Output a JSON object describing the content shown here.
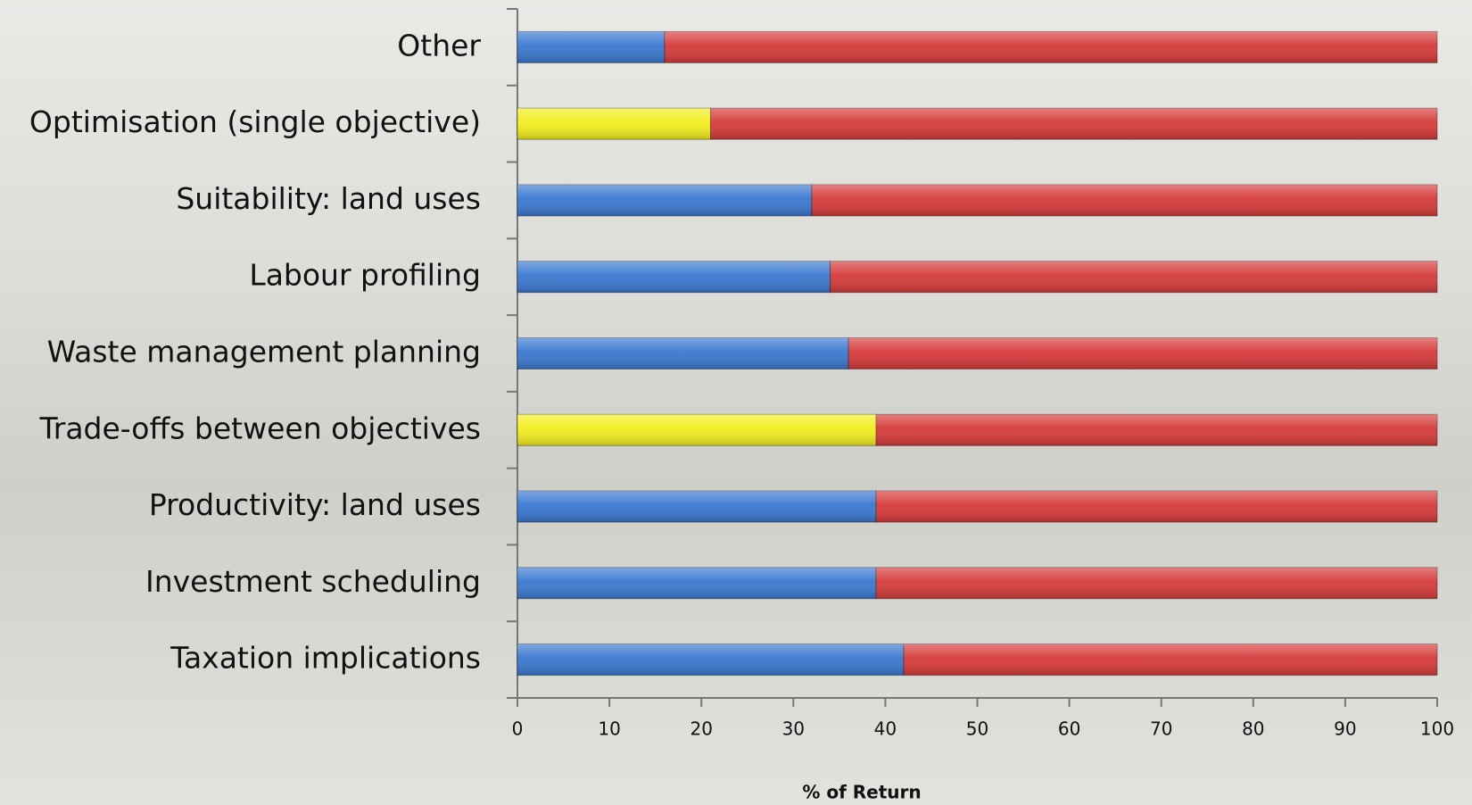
{
  "chart_data": {
    "type": "stacked-bar-horizontal",
    "categories": [
      "Other",
      "Optimisation (single objective)",
      "Suitability: land uses",
      "Labour profiling",
      "Waste management planning",
      "Trade-offs between objectives",
      "Productivity: land uses",
      "Investment scheduling",
      "Taxation implications"
    ],
    "series": [
      {
        "colors": [
          "#3a78d0",
          "#f2ee1e",
          "#3a78d0",
          "#3a78d0",
          "#3a78d0",
          "#f2ee1e",
          "#3a78d0",
          "#3a78d0",
          "#3a78d0"
        ],
        "values": [
          16,
          21,
          32,
          34,
          36,
          39,
          39,
          39,
          42
        ]
      },
      {
        "color": "#d63a3a",
        "values": [
          84,
          79,
          68,
          66,
          64,
          61,
          61,
          61,
          58
        ]
      }
    ],
    "xlabel": "% of Return",
    "xlim": [
      0,
      100
    ],
    "xticks": [
      0,
      10,
      20,
      30,
      40,
      50,
      60,
      70,
      80,
      90,
      100
    ]
  }
}
